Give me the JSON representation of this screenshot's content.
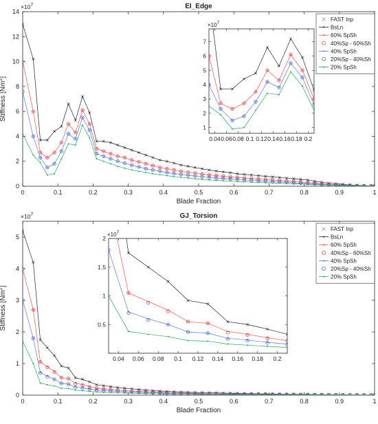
{
  "chart_data": [
    {
      "type": "line",
      "title": "EI_Edge",
      "xlabel": "Blade Fraction",
      "ylabel_main": "Stiffness [Nm",
      "ylabel_sup": "2",
      "ylabel_end": "]",
      "exponent": "×10",
      "exponent_power": "7",
      "xlim": [
        0,
        1
      ],
      "ylim": [
        0,
        14
      ],
      "xticks": [
        0,
        0.1,
        0.2,
        0.3,
        0.4,
        0.5,
        0.6,
        0.7,
        0.8,
        0.9,
        1
      ],
      "yticks": [
        0,
        2,
        4,
        6,
        8,
        10,
        12,
        14
      ],
      "legend_location": "top-right",
      "legend": [
        "FAST Inp",
        "BsLn",
        "60% SpSh",
        "40%Sp - 60%Sh",
        "40% SpSh",
        "20%Sp - 40%Sh",
        "20% SpSh"
      ],
      "x": [
        0,
        0.03,
        0.05,
        0.07,
        0.09,
        0.11,
        0.13,
        0.15,
        0.17,
        0.19,
        0.21,
        0.23,
        0.25,
        0.27,
        0.29,
        0.31,
        0.33,
        0.35,
        0.37,
        0.39,
        0.41,
        0.43,
        0.45,
        0.47,
        0.49,
        0.51,
        0.53,
        0.55,
        0.57,
        0.59,
        0.61,
        0.63,
        0.65,
        0.67,
        0.69,
        0.71,
        0.73,
        0.75,
        0.77,
        0.79,
        0.81,
        0.83,
        0.85,
        0.87,
        0.89,
        0.91,
        0.93,
        0.95,
        0.97,
        0.99,
        1.0
      ],
      "series": [
        {
          "name": "FAST Inp",
          "values": [
            13,
            10.2,
            3.7,
            3.7,
            4.4,
            4.8,
            6.6,
            5.3,
            7.2,
            5.9,
            3.6,
            3.6,
            3.5,
            3.3,
            3.1,
            2.9,
            2.7,
            2.5,
            2.3,
            2.1,
            2.0,
            1.85,
            1.7,
            1.6,
            1.5,
            1.4,
            1.3,
            1.22,
            1.15,
            1.08,
            1.0,
            0.95,
            0.9,
            0.85,
            0.8,
            0.75,
            0.7,
            0.65,
            0.6,
            0.55,
            0.5,
            0.4,
            0.32,
            0.25,
            0.2,
            0.15,
            0.1,
            0.07,
            0.05,
            0.03,
            0.02
          ]
        },
        {
          "name": "BsLn",
          "values": [
            13,
            10.2,
            3.7,
            3.7,
            4.4,
            4.8,
            6.6,
            5.3,
            7.2,
            5.9,
            3.6,
            3.6,
            3.5,
            3.3,
            3.1,
            2.9,
            2.7,
            2.5,
            2.3,
            2.1,
            2.0,
            1.85,
            1.7,
            1.6,
            1.5,
            1.4,
            1.3,
            1.22,
            1.15,
            1.08,
            1.0,
            0.95,
            0.9,
            0.85,
            0.8,
            0.75,
            0.7,
            0.65,
            0.6,
            0.55,
            0.5,
            0.4,
            0.32,
            0.25,
            0.2,
            0.15,
            0.1,
            0.07,
            0.05,
            0.03,
            0.02
          ]
        },
        {
          "name": "60% SpSh",
          "values": [
            10,
            6.0,
            2.7,
            2.3,
            2.7,
            3.5,
            5.0,
            4.3,
            6.1,
            5.0,
            3.0,
            2.8,
            2.6,
            2.4,
            2.3,
            2.1,
            1.95,
            1.8,
            1.65,
            1.5,
            1.4,
            1.3,
            1.2,
            1.12,
            1.05,
            0.98,
            0.9,
            0.85,
            0.8,
            0.75,
            0.7,
            0.66,
            0.62,
            0.58,
            0.54,
            0.5,
            0.46,
            0.42,
            0.38,
            0.34,
            0.3,
            0.25,
            0.2,
            0.16,
            0.12,
            0.09,
            0.06,
            0.04,
            0.03,
            0.02,
            0.01
          ]
        },
        {
          "name": "40%Sp - 60%Sh",
          "values": [
            10,
            6.0,
            2.7,
            2.3,
            2.7,
            3.5,
            5.0,
            4.3,
            6.1,
            5.0,
            3.0,
            2.8,
            2.6,
            2.4,
            2.3,
            2.1,
            1.95,
            1.8,
            1.65,
            1.5,
            1.4,
            1.3,
            1.2,
            1.12,
            1.05,
            0.98,
            0.9,
            0.85,
            0.8,
            0.75,
            0.7,
            0.66,
            0.62,
            0.58,
            0.54,
            0.5,
            0.46,
            0.42,
            0.38,
            0.34,
            0.3,
            0.25,
            0.2,
            0.16,
            0.12,
            0.09,
            0.06,
            0.04,
            0.03,
            0.02,
            0.01
          ]
        },
        {
          "name": "40% SpSh",
          "values": [
            7.6,
            4.0,
            2.3,
            1.5,
            1.8,
            2.8,
            4.2,
            3.8,
            5.5,
            4.5,
            2.6,
            2.4,
            2.2,
            2.0,
            1.85,
            1.7,
            1.55,
            1.4,
            1.3,
            1.2,
            1.1,
            1.02,
            0.95,
            0.88,
            0.82,
            0.76,
            0.7,
            0.66,
            0.62,
            0.58,
            0.54,
            0.5,
            0.46,
            0.43,
            0.4,
            0.37,
            0.34,
            0.31,
            0.28,
            0.25,
            0.22,
            0.18,
            0.15,
            0.12,
            0.09,
            0.07,
            0.05,
            0.03,
            0.02,
            0.01,
            0.01
          ]
        },
        {
          "name": "20%Sp - 40%Sh",
          "values": [
            7.6,
            4.0,
            2.3,
            1.5,
            1.8,
            2.8,
            4.2,
            3.8,
            5.5,
            4.5,
            2.6,
            2.4,
            2.2,
            2.0,
            1.85,
            1.7,
            1.55,
            1.4,
            1.3,
            1.2,
            1.1,
            1.02,
            0.95,
            0.88,
            0.82,
            0.76,
            0.7,
            0.66,
            0.62,
            0.58,
            0.54,
            0.5,
            0.46,
            0.43,
            0.4,
            0.37,
            0.34,
            0.31,
            0.28,
            0.25,
            0.22,
            0.18,
            0.15,
            0.12,
            0.09,
            0.07,
            0.05,
            0.03,
            0.02,
            0.01,
            0.01
          ]
        },
        {
          "name": "20% SpSh",
          "values": [
            4.2,
            2.5,
            1.9,
            0.9,
            1.0,
            2.2,
            3.4,
            3.3,
            4.9,
            3.9,
            2.2,
            2.0,
            1.8,
            1.6,
            1.45,
            1.3,
            1.2,
            1.1,
            1.0,
            0.92,
            0.85,
            0.78,
            0.72,
            0.66,
            0.6,
            0.55,
            0.5,
            0.47,
            0.44,
            0.41,
            0.38,
            0.35,
            0.32,
            0.3,
            0.28,
            0.26,
            0.24,
            0.22,
            0.2,
            0.18,
            0.16,
            0.13,
            0.11,
            0.09,
            0.07,
            0.05,
            0.04,
            0.02,
            0.01,
            0.01,
            0.0
          ]
        }
      ],
      "inset": {
        "xlim": [
          0.03,
          0.21
        ],
        "ylim": [
          0.6,
          7.9
        ],
        "xticks": [
          0.04,
          0.06,
          0.08,
          0.1,
          0.12,
          0.14,
          0.16,
          0.18,
          0.2
        ],
        "xtick_labels": [
          "0.04",
          "0.06",
          "0.08",
          "0.1",
          "0.12",
          "0.14",
          "0.16",
          "0.18",
          "0.2"
        ],
        "yticks": [
          1,
          2,
          3,
          4,
          5,
          6,
          7
        ],
        "exponent": "×10",
        "exponent_power": "7"
      }
    },
    {
      "type": "line",
      "title": "GJ_Torsion",
      "xlabel": "Blade Fraction",
      "ylabel_main": "Stiffness [Nm",
      "ylabel_sup": "2",
      "ylabel_end": "]",
      "exponent": "×10",
      "exponent_power": "7",
      "xlim": [
        0,
        1
      ],
      "ylim": [
        0,
        5.5
      ],
      "xticks": [
        0,
        0.1,
        0.2,
        0.3,
        0.4,
        0.5,
        0.6,
        0.7,
        0.8,
        0.9,
        1
      ],
      "yticks": [
        0,
        1,
        2,
        3,
        4,
        5
      ],
      "legend_location": "top-right",
      "legend": [
        "FAST Inp",
        "BsLn",
        "60% SpSh",
        "40%Sp - 60%Sh",
        "40% SpSh",
        "20%Sp - 40%Sh",
        "20% SpSh"
      ],
      "x": [
        0,
        0.03,
        0.05,
        0.07,
        0.09,
        0.11,
        0.13,
        0.15,
        0.17,
        0.19,
        0.21,
        0.23,
        0.25,
        0.27,
        0.29,
        0.31,
        0.33,
        0.35,
        0.37,
        0.39,
        0.41,
        0.43,
        0.45,
        0.47,
        0.49,
        0.51,
        0.53,
        0.55,
        0.57,
        0.59,
        0.61,
        0.63,
        0.65,
        0.67,
        0.69,
        0.71,
        0.73,
        0.75,
        0.77,
        0.79,
        0.81,
        0.83,
        0.85,
        0.87,
        0.89,
        0.91,
        0.93,
        0.95,
        0.97,
        0.99,
        1.0
      ],
      "series": [
        {
          "name": "FAST Inp",
          "values": [
            5.2,
            4.2,
            1.75,
            1.5,
            1.25,
            0.92,
            0.86,
            0.55,
            0.5,
            0.42,
            0.33,
            0.3,
            0.27,
            0.24,
            0.22,
            0.2,
            0.18,
            0.16,
            0.145,
            0.13,
            0.12,
            0.11,
            0.1,
            0.09,
            0.085,
            0.08,
            0.075,
            0.07,
            0.065,
            0.06,
            0.055,
            0.05,
            0.046,
            0.042,
            0.04,
            0.037,
            0.034,
            0.031,
            0.028,
            0.025,
            0.022,
            0.02,
            0.018,
            0.016,
            0.014,
            0.012,
            0.01,
            0.008,
            0.006,
            0.005,
            0.004
          ]
        },
        {
          "name": "BsLn",
          "values": [
            5.2,
            4.2,
            1.75,
            1.5,
            1.25,
            0.92,
            0.86,
            0.55,
            0.5,
            0.42,
            0.33,
            0.3,
            0.27,
            0.24,
            0.22,
            0.2,
            0.18,
            0.16,
            0.145,
            0.13,
            0.12,
            0.11,
            0.1,
            0.09,
            0.085,
            0.08,
            0.075,
            0.07,
            0.065,
            0.06,
            0.055,
            0.05,
            0.046,
            0.042,
            0.04,
            0.037,
            0.034,
            0.031,
            0.028,
            0.025,
            0.022,
            0.02,
            0.018,
            0.016,
            0.014,
            0.012,
            0.01,
            0.008,
            0.006,
            0.005,
            0.004
          ]
        },
        {
          "name": "60% SpSh",
          "values": [
            4.0,
            2.7,
            1.05,
            0.9,
            0.75,
            0.55,
            0.52,
            0.38,
            0.33,
            0.27,
            0.22,
            0.2,
            0.18,
            0.16,
            0.145,
            0.13,
            0.12,
            0.11,
            0.1,
            0.09,
            0.082,
            0.075,
            0.068,
            0.062,
            0.057,
            0.052,
            0.048,
            0.044,
            0.041,
            0.038,
            0.035,
            0.032,
            0.03,
            0.028,
            0.026,
            0.024,
            0.022,
            0.02,
            0.018,
            0.016,
            0.014,
            0.013,
            0.012,
            0.011,
            0.01,
            0.009,
            0.008,
            0.006,
            0.005,
            0.004,
            0.003
          ]
        },
        {
          "name": "40%Sp - 60%Sh",
          "values": [
            4.0,
            2.7,
            1.05,
            0.88,
            0.73,
            0.55,
            0.52,
            0.36,
            0.32,
            0.26,
            0.22,
            0.2,
            0.18,
            0.16,
            0.145,
            0.13,
            0.12,
            0.11,
            0.1,
            0.09,
            0.082,
            0.075,
            0.068,
            0.062,
            0.057,
            0.052,
            0.048,
            0.044,
            0.041,
            0.038,
            0.035,
            0.032,
            0.03,
            0.028,
            0.026,
            0.024,
            0.022,
            0.02,
            0.018,
            0.016,
            0.014,
            0.013,
            0.012,
            0.011,
            0.01,
            0.009,
            0.008,
            0.006,
            0.005,
            0.004,
            0.003
          ]
        },
        {
          "name": "40% SpSh",
          "values": [
            3.0,
            1.8,
            0.72,
            0.6,
            0.5,
            0.37,
            0.35,
            0.26,
            0.23,
            0.19,
            0.16,
            0.145,
            0.13,
            0.12,
            0.11,
            0.1,
            0.09,
            0.082,
            0.075,
            0.068,
            0.062,
            0.057,
            0.052,
            0.048,
            0.044,
            0.04,
            0.037,
            0.034,
            0.031,
            0.029,
            0.027,
            0.025,
            0.023,
            0.021,
            0.02,
            0.018,
            0.017,
            0.015,
            0.014,
            0.012,
            0.011,
            0.01,
            0.009,
            0.008,
            0.007,
            0.006,
            0.005,
            0.004,
            0.003,
            0.002,
            0.002
          ]
        },
        {
          "name": "20%Sp - 40%Sh",
          "values": [
            3.0,
            1.8,
            0.7,
            0.58,
            0.5,
            0.37,
            0.35,
            0.25,
            0.22,
            0.18,
            0.15,
            0.14,
            0.125,
            0.115,
            0.105,
            0.095,
            0.088,
            0.08,
            0.073,
            0.067,
            0.061,
            0.056,
            0.051,
            0.047,
            0.043,
            0.04,
            0.037,
            0.034,
            0.031,
            0.029,
            0.027,
            0.025,
            0.023,
            0.021,
            0.02,
            0.018,
            0.017,
            0.015,
            0.014,
            0.012,
            0.011,
            0.01,
            0.009,
            0.008,
            0.007,
            0.006,
            0.005,
            0.004,
            0.003,
            0.002,
            0.002
          ]
        },
        {
          "name": "20% SpSh",
          "values": [
            1.7,
            1.0,
            0.38,
            0.33,
            0.29,
            0.22,
            0.21,
            0.16,
            0.14,
            0.12,
            0.1,
            0.09,
            0.082,
            0.075,
            0.068,
            0.062,
            0.057,
            0.052,
            0.048,
            0.044,
            0.04,
            0.037,
            0.034,
            0.031,
            0.029,
            0.027,
            0.025,
            0.023,
            0.021,
            0.019,
            0.018,
            0.016,
            0.015,
            0.014,
            0.013,
            0.012,
            0.011,
            0.01,
            0.009,
            0.008,
            0.007,
            0.006,
            0.006,
            0.005,
            0.004,
            0.004,
            0.003,
            0.002,
            0.002,
            0.001,
            0.001
          ]
        }
      ],
      "inset": {
        "xlim": [
          0.03,
          0.21
        ],
        "ylim": [
          0,
          2
        ],
        "xticks": [
          0.04,
          0.06,
          0.08,
          0.1,
          0.12,
          0.14,
          0.16,
          0.18,
          0.2
        ],
        "xtick_labels": [
          "0.04",
          "0.06",
          "0.08",
          "0.1",
          "0.12",
          "0.14",
          "0.16",
          "0.18",
          "0.2"
        ],
        "yticks": [
          0,
          0.5,
          1,
          1.5,
          2
        ],
        "ytick_labels": [
          "",
          "0.5",
          "1",
          "1.5",
          "2"
        ],
        "exponent": "×10",
        "exponent_power": "7"
      }
    }
  ],
  "styles": {
    "FAST Inp": {
      "color": "#8c8c8c",
      "marker": "x",
      "line": false
    },
    "BsLn": {
      "color": "#222222",
      "marker": "dot",
      "line": true
    },
    "60% SpSh": {
      "color": "#ff4d4d",
      "marker": "dot",
      "line": true
    },
    "40%Sp - 60%Sh": {
      "color": "#e03030",
      "marker": "circle",
      "line": false
    },
    "40% SpSh": {
      "color": "#5577ee",
      "marker": "dot",
      "line": true
    },
    "20%Sp - 40%Sh": {
      "color": "#3355cc",
      "marker": "circle",
      "line": false
    },
    "20% SpSh": {
      "color": "#22aa55",
      "marker": "dot",
      "line": true
    }
  }
}
